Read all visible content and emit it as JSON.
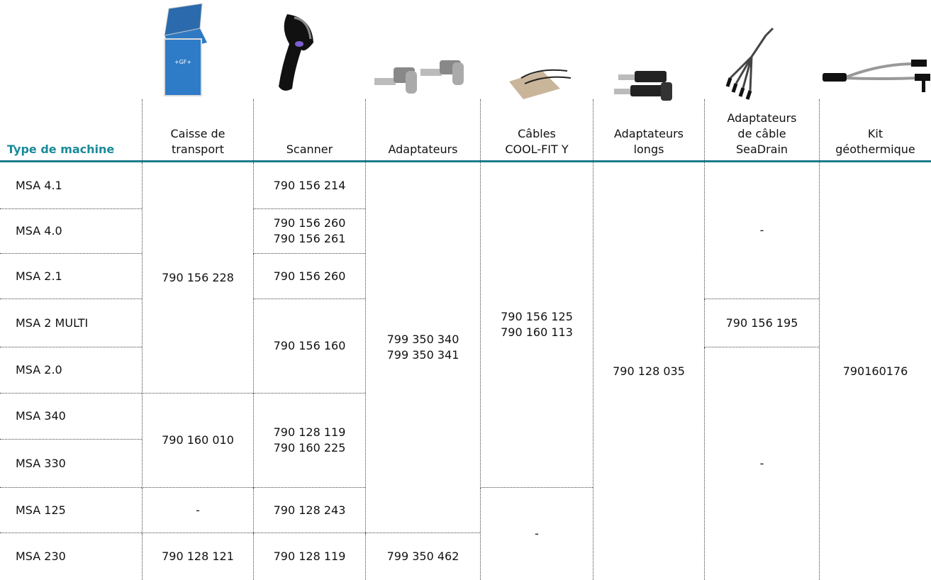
{
  "table": {
    "columns": [
      {
        "header": "Type de machine",
        "cells": [
          "MSA 4.1",
          "MSA 4.0",
          "MSA 2.1",
          "MSA 2 MULTI",
          "MSA 2.0",
          "MSA 340",
          "MSA 330",
          "MSA 125",
          "MSA 230"
        ]
      },
      {
        "header": "Caisse de\ntransport",
        "cells": [
          "790 156 228",
          "790 160 010",
          "-",
          "790 128 121"
        ]
      },
      {
        "header": "Scanner",
        "cells": [
          "790 156 214",
          "790 156 260\n790 156 261",
          "790 156 260",
          "790 156 160",
          "790 128 119\n790 160 225",
          "790 128 243",
          "790 128 119"
        ]
      },
      {
        "header": "Adaptateurs",
        "cells": [
          "799 350 340\n799 350 341",
          "799 350 462"
        ]
      },
      {
        "header": "Câbles\nCOOL-FIT Y",
        "cells": [
          "790 156 125\n790 160 113",
          "-"
        ]
      },
      {
        "header": "Adaptateurs\nlongs",
        "cells": [
          "790 128 035"
        ]
      },
      {
        "header": "Adaptateurs\nde câble\nSeaDrain",
        "cells": [
          "-",
          "790 156 195",
          "-"
        ]
      },
      {
        "header": "Kit\ngéothermique",
        "cells": [
          "790160176"
        ]
      }
    ]
  }
}
